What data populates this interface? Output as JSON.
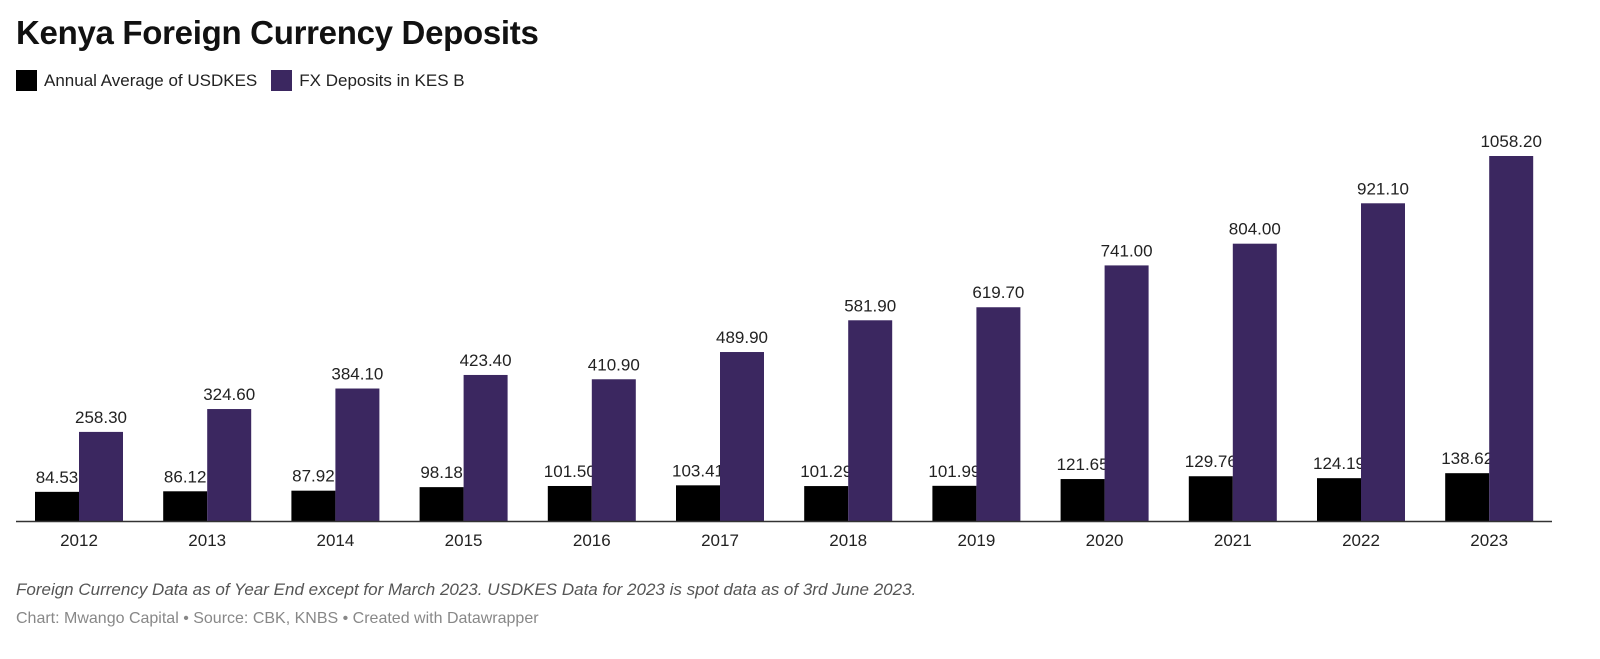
{
  "title": "Kenya Foreign Currency Deposits",
  "legend": [
    {
      "label": "Annual Average of USDKES",
      "color": "#000000"
    },
    {
      "label": "FX Deposits in KES B",
      "color": "#3b2760"
    }
  ],
  "notes": "Foreign Currency Data as of Year End except for March 2023. USDKES Data for 2023 is spot data as of 3rd June 2023.",
  "credits": "Chart: Mwango Capital • Source: CBK, KNBS • Created with Datawrapper",
  "chart_data": {
    "type": "bar",
    "title": "Kenya Foreign Currency Deposits",
    "xlabel": "",
    "ylabel": "",
    "categories": [
      "2012",
      "2013",
      "2014",
      "2015",
      "2016",
      "2017",
      "2018",
      "2019",
      "2020",
      "2021",
      "2022",
      "2023"
    ],
    "series": [
      {
        "name": "Annual Average of USDKES",
        "color": "#000000",
        "values": [
          84.53,
          86.12,
          87.92,
          98.18,
          101.5,
          103.41,
          101.29,
          101.99,
          121.65,
          129.76,
          124.19,
          138.62
        ]
      },
      {
        "name": "FX Deposits in KES B",
        "color": "#3b2760",
        "values": [
          258.3,
          324.6,
          384.1,
          423.4,
          410.9,
          489.9,
          581.9,
          619.7,
          741.0,
          804.0,
          921.1,
          1058.2
        ]
      }
    ],
    "ylim": [
      0,
      1058.2
    ],
    "grid": false,
    "legend_position": "top-left"
  }
}
